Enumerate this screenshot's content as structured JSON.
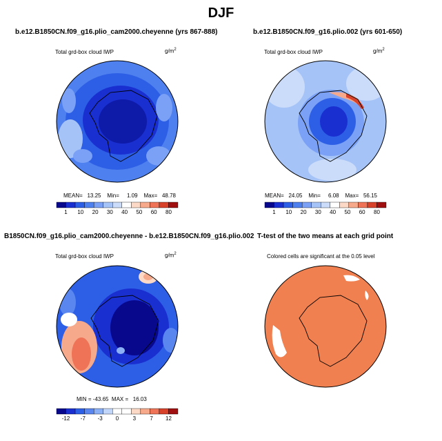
{
  "figure": {
    "title": "DJF"
  },
  "panels": [
    {
      "title": "b.e12.B1850CN.f09_g16.plio_cam2000.cheyenne (yrs 867-888)",
      "field_label": "Total grd-box cloud IWP",
      "units": "g/m",
      "units_sup": "2",
      "stats": "MEAN=   13.25    Min=     1.09    Max=   48.78",
      "colorbar_ticks": [
        "1",
        "10",
        "20",
        "30",
        "40",
        "50",
        "60",
        "80"
      ]
    },
    {
      "title": "b.e12.B1850CN.f09_g16.plio.002 (yrs 601-650)",
      "field_label": "Total grd-box cloud IWP",
      "units": "g/m",
      "units_sup": "2",
      "stats": "MEAN=   24.05    Min=     6.08    Max=   56.15",
      "colorbar_ticks": [
        "1",
        "10",
        "20",
        "30",
        "40",
        "50",
        "60",
        "80"
      ]
    },
    {
      "title": "B1850CN.f09_g16.plio_cam2000.cheyenne - b.e12.B1850CN.f09_g16.plio.002",
      "field_label": "Total grd-box cloud IWP",
      "units": "g/m",
      "units_sup": "2",
      "stats": "MIN = -43.65  MAX =   16.03",
      "colorbar_ticks": [
        "-12",
        "-7",
        "-3",
        "0",
        "3",
        "7",
        "12"
      ]
    },
    {
      "title": "T-test of the two means at each grid point",
      "subtitle": "Colored cells are significant at the 0.05 level"
    }
  ],
  "colors": {
    "abs_scale": [
      "#08088c",
      "#1a2fd0",
      "#2d5fe6",
      "#4f80ef",
      "#7aa1f5",
      "#a6c3f7",
      "#cbdcfa",
      "#ffffff",
      "#fcd9c6",
      "#f7a98b",
      "#ef7356",
      "#d8412a",
      "#a01010"
    ],
    "diff_scale": [
      "#08088c",
      "#1a2fd0",
      "#2d5fe6",
      "#5a86f0",
      "#8bb0f6",
      "#c2d6fa",
      "#ffffff",
      "#ffffff",
      "#fcd9c6",
      "#f7a98b",
      "#ef7356",
      "#d8412a",
      "#a01010"
    ],
    "significance_fill": "#f08050"
  }
}
